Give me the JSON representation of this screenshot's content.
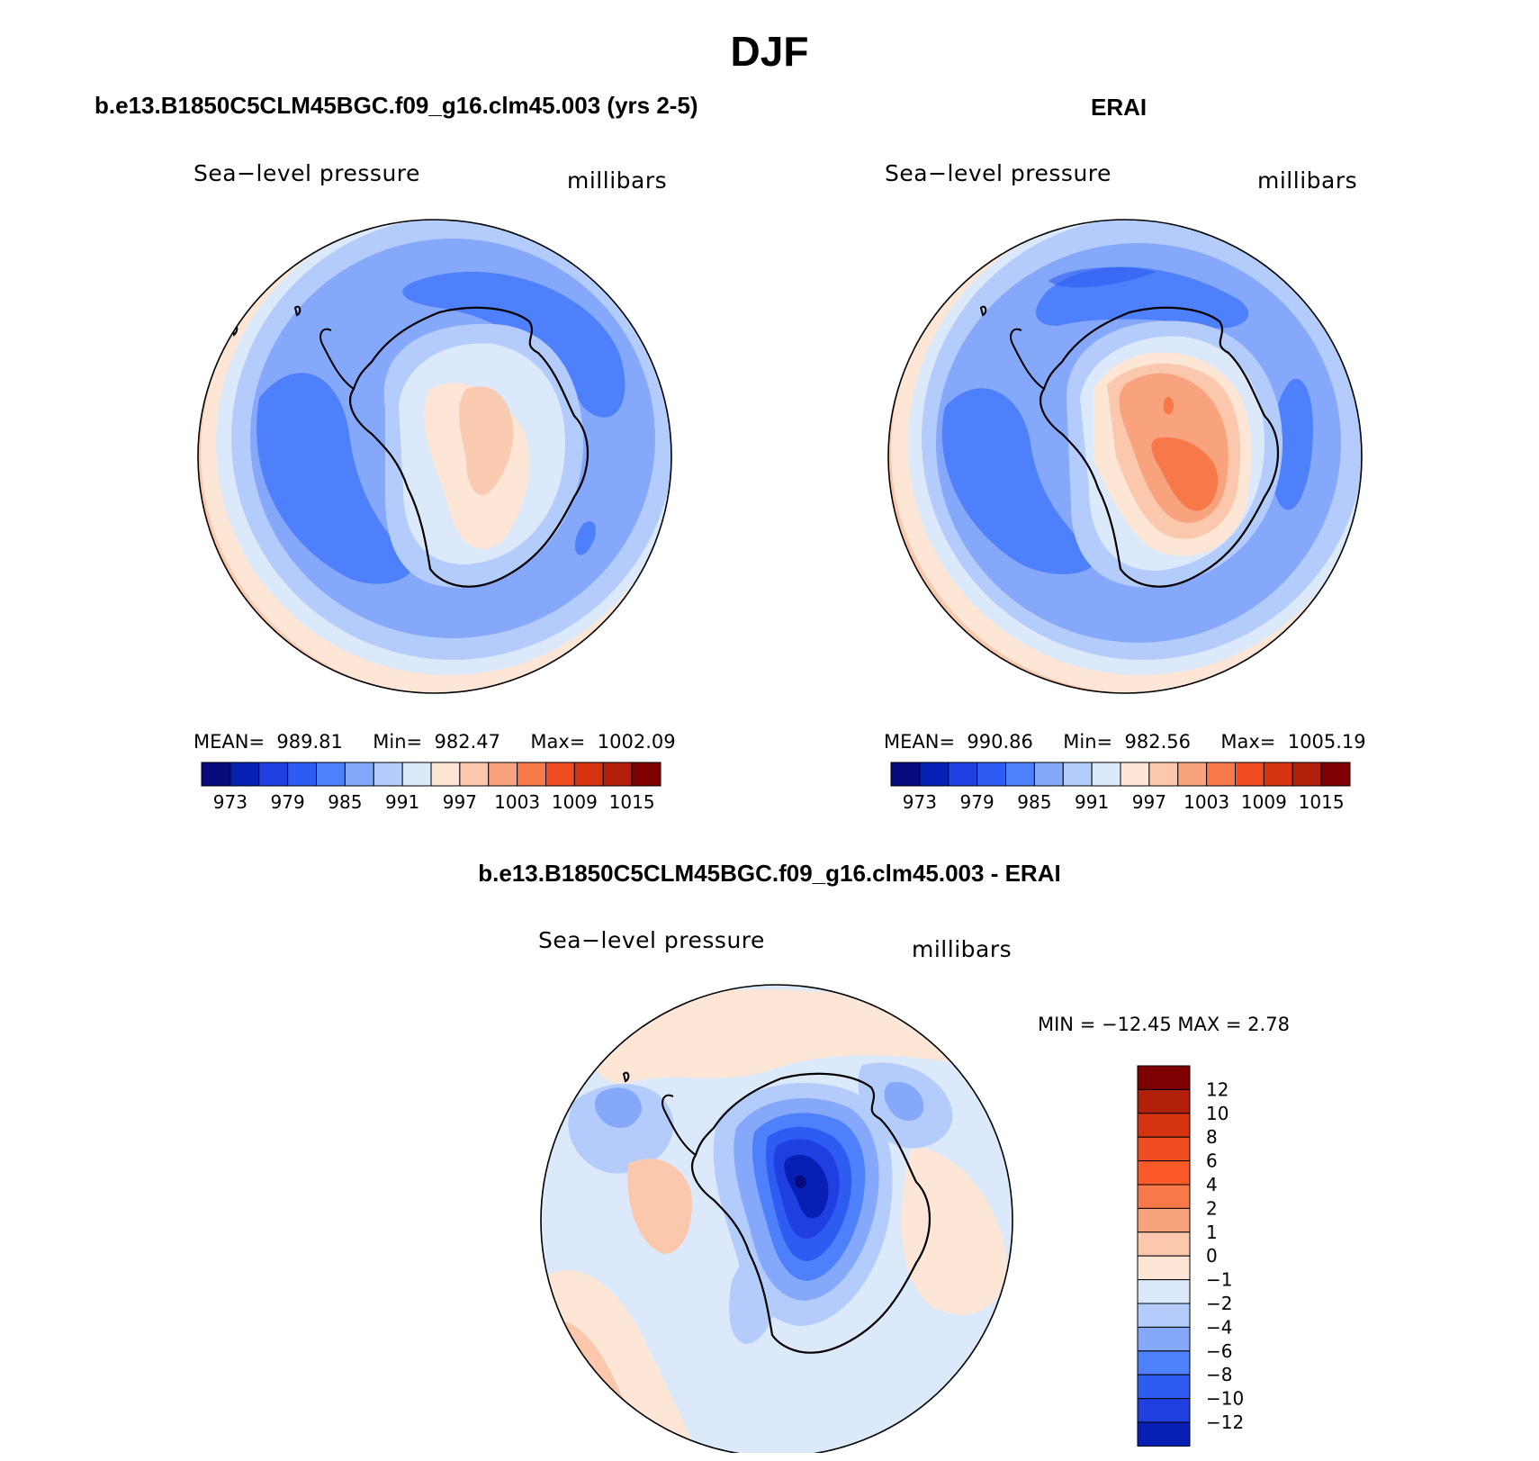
{
  "title": "DJF",
  "panels": [
    {
      "title": "b.e13.B1850C5CLM45BGC.f09_g16.clm45.003 (yrs 2-5)",
      "variable": "Sea−level pressure",
      "units": "millibars",
      "stats": {
        "mean_label": "MEAN=",
        "mean": "989.81",
        "min_label": "Min=",
        "min": "982.47",
        "max_label": "Max=",
        "max": "1002.09"
      }
    },
    {
      "title": "ERAI",
      "variable": "Sea−level pressure",
      "units": "millibars",
      "stats": {
        "mean_label": "MEAN=",
        "mean": "990.86",
        "min_label": "Min=",
        "min": "982.56",
        "max_label": "Max=",
        "max": "1005.19"
      }
    },
    {
      "title": "b.e13.B1850C5CLM45BGC.f09_g16.clm45.003 - ERAI",
      "variable": "Sea−level pressure",
      "units": "millibars",
      "stats_text": "MIN = −12.45 MAX =    2.78"
    }
  ],
  "chart_data": [
    {
      "type": "heatmap",
      "projection": "south polar stereographic",
      "title": "b.e13.B1850C5CLM45BGC.f09_g16.clm45.003 (yrs 2-5)",
      "variable": "Sea−level pressure",
      "units": "millibars",
      "mean": 989.81,
      "min": 982.47,
      "max": 1002.09,
      "colorbar_levels": [
        973,
        979,
        985,
        991,
        997,
        1003,
        1009,
        1015
      ],
      "colorbar_tick_labels": [
        "973",
        "979",
        "985",
        "991",
        "997",
        "1003",
        "1009",
        "1015"
      ],
      "colorbar_colors": [
        "#060a7d",
        "#0720b3",
        "#1f3fe0",
        "#2e5cf2",
        "#4d80fa",
        "#86a8fb",
        "#b4ccfb",
        "#dce9fb",
        "#fde6d5",
        "#fbc8ad",
        "#f8a37e",
        "#f7794a",
        "#ef4c21",
        "#d63310",
        "#b21f0b",
        "#7e0000"
      ]
    },
    {
      "type": "heatmap",
      "projection": "south polar stereographic",
      "title": "ERAI",
      "variable": "Sea−level pressure",
      "units": "millibars",
      "mean": 990.86,
      "min": 982.56,
      "max": 1005.19,
      "colorbar_levels": [
        973,
        979,
        985,
        991,
        997,
        1003,
        1009,
        1015
      ],
      "colorbar_tick_labels": [
        "973",
        "979",
        "985",
        "991",
        "997",
        "1003",
        "1009",
        "1015"
      ],
      "colorbar_colors": [
        "#060a7d",
        "#0720b3",
        "#1f3fe0",
        "#2e5cf2",
        "#4d80fa",
        "#86a8fb",
        "#b4ccfb",
        "#dce9fb",
        "#fde6d5",
        "#fbc8ad",
        "#f8a37e",
        "#f7794a",
        "#ef4c21",
        "#d63310",
        "#b21f0b",
        "#7e0000"
      ]
    },
    {
      "type": "heatmap",
      "projection": "south polar stereographic",
      "title": "b.e13.B1850C5CLM45BGC.f09_g16.clm45.003 - ERAI",
      "variable": "Sea−level pressure",
      "units": "millibars",
      "min": -12.45,
      "max": 2.78,
      "colorbar_levels": [
        12,
        10,
        8,
        6,
        4,
        2,
        1,
        0,
        -1,
        -2,
        -4,
        -6,
        -8,
        -10,
        -12
      ],
      "colorbar_tick_labels": [
        "12",
        "10",
        "8",
        "6",
        "4",
        "2",
        "1",
        "0",
        "−1",
        "−2",
        "−4",
        "−6",
        "−8",
        "−10",
        "−12"
      ],
      "colorbar_colors": [
        "#7e0000",
        "#b21f0b",
        "#d63310",
        "#ef4c21",
        "#fb5a28",
        "#f7794a",
        "#f8a37e",
        "#fbc8ad",
        "#fde6d5",
        "#dce9fb",
        "#b4ccfb",
        "#86a8fb",
        "#4d80fa",
        "#2e5cf2",
        "#1f3fe0",
        "#0720b3"
      ]
    }
  ]
}
